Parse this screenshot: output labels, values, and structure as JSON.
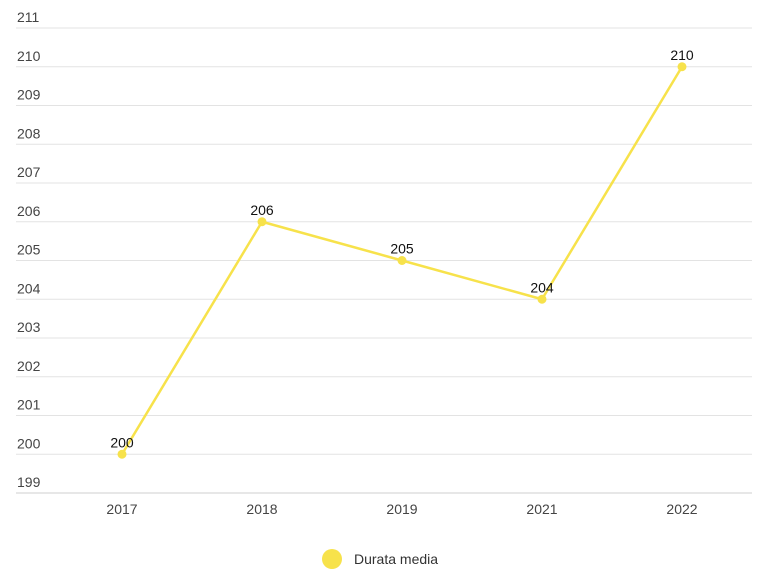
{
  "chart_data": {
    "type": "line",
    "categories": [
      "2017",
      "2018",
      "2019",
      "2021",
      "2022"
    ],
    "series": [
      {
        "name": "Durata media",
        "values": [
          200,
          206,
          205,
          204,
          210
        ],
        "color": "#f7e24b"
      }
    ],
    "y_ticks": [
      211,
      210,
      209,
      208,
      207,
      206,
      205,
      204,
      203,
      202,
      201,
      200,
      199
    ],
    "ylim": [
      199,
      211
    ],
    "grid": true,
    "legend": "bottom-center",
    "data_labels": [
      "200",
      "206",
      "205",
      "204",
      "210"
    ]
  },
  "legend": {
    "label": "Durata media",
    "color": "#f7e24b"
  }
}
